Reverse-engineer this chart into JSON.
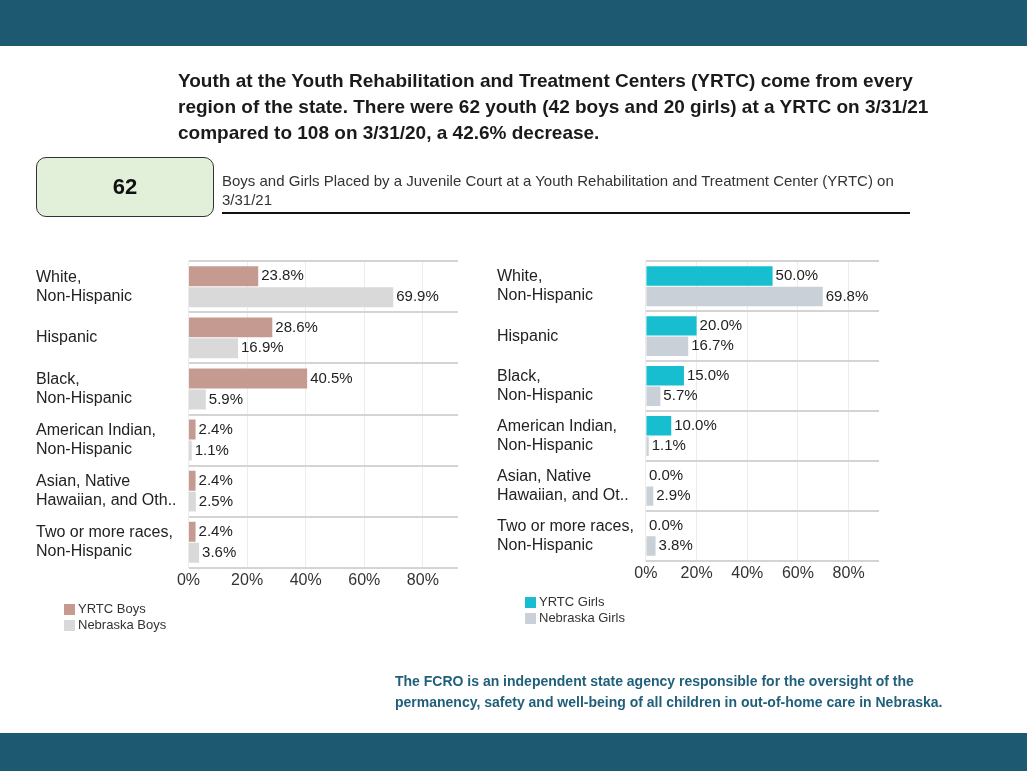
{
  "chart_data": [
    {
      "type": "other",
      "title": "Youth at the Youth Rehabilitation and Treatment Centers (YRTC) come from every region of the state. There were 62 youth (42 boys and 20 girls) at a YRTC on 3/31/21 compared to 108 on 3/31/20, a 42.6% decrease.",
      "annotations": [
        "62",
        "Boys and Girls Placed by a Juvenile Court at a Youth Rehabilitation and Treatment Center (YRTC) on 3/31/21",
        "The FCRO is an independent state agency responsible for the oversight of the permanency, safety and well-being of all children in out-of-home care in Nebraska."
      ]
    },
    {
      "type": "bar",
      "orientation": "horizontal",
      "categories": [
        "White,\nNon-Hispanic",
        "Hispanic",
        "Black,\nNon-Hispanic",
        "American Indian,\nNon-Hispanic",
        "Asian, Native\nHawaiian, and Oth..",
        "Two or more races,\nNon-Hispanic"
      ],
      "series": [
        {
          "name": "YRTC Boys",
          "color": "#c49a91",
          "values": [
            23.8,
            28.6,
            40.5,
            2.4,
            2.4,
            2.4
          ],
          "value_labels": [
            "23.8%",
            "28.6%",
            "40.5%",
            "2.4%",
            "2.4%",
            "2.4%"
          ]
        },
        {
          "name": "Nebraska Boys",
          "color": "#d9d9d9",
          "values": [
            69.9,
            16.9,
            5.9,
            1.1,
            2.5,
            3.6
          ],
          "value_labels": [
            "69.9%",
            "16.9%",
            "5.9%",
            "1.1%",
            "2.5%",
            "3.6%"
          ]
        }
      ],
      "xlim": [
        0,
        92
      ],
      "xticks": [
        {
          "value": 0,
          "label": "0%"
        },
        {
          "value": 20,
          "label": "20%"
        },
        {
          "value": 40,
          "label": "40%"
        },
        {
          "value": 60,
          "label": "60%"
        },
        {
          "value": 80,
          "label": "80%"
        }
      ],
      "grid": true,
      "legend": "bottom left"
    },
    {
      "type": "bar",
      "orientation": "horizontal",
      "categories": [
        "White,\nNon-Hispanic",
        "Hispanic",
        "Black,\nNon-Hispanic",
        "American Indian,\nNon-Hispanic",
        "Asian, Native\nHawaiian, and Ot..",
        "Two or more races,\nNon-Hispanic"
      ],
      "series": [
        {
          "name": "YRTC Girls",
          "color": "#17becf",
          "values": [
            50.0,
            20.0,
            15.0,
            10.0,
            0.0,
            0.0
          ],
          "value_labels": [
            "50.0%",
            "20.0%",
            "15.0%",
            "10.0%",
            "0.0%",
            "0.0%"
          ]
        },
        {
          "name": "Nebraska Girls",
          "color": "#c9d0d8",
          "values": [
            69.8,
            16.7,
            5.7,
            1.1,
            2.9,
            3.8
          ],
          "value_labels": [
            "69.8%",
            "16.7%",
            "5.7%",
            "1.1%",
            "2.9%",
            "3.8%"
          ]
        }
      ],
      "xlim": [
        0,
        92
      ],
      "xticks": [
        {
          "value": 0,
          "label": "0%"
        },
        {
          "value": 20,
          "label": "20%"
        },
        {
          "value": 40,
          "label": "40%"
        },
        {
          "value": 60,
          "label": "60%"
        },
        {
          "value": 80,
          "label": "80%"
        }
      ],
      "grid": true,
      "legend": "bottom left"
    }
  ]
}
